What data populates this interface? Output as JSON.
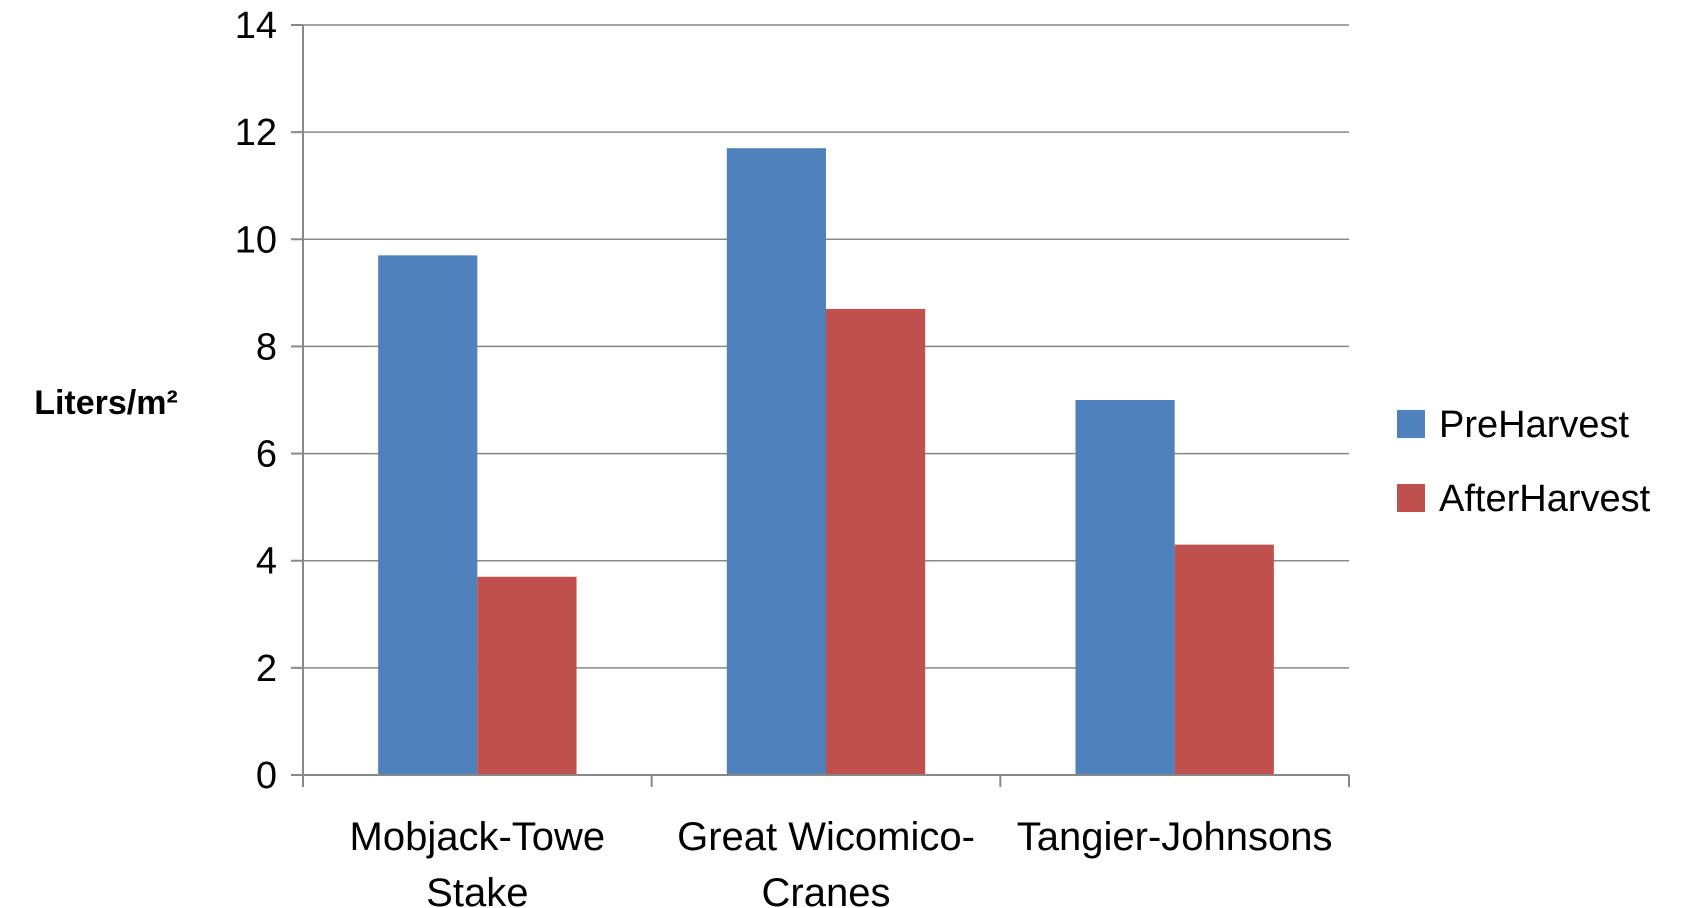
{
  "chart_data": {
    "type": "bar",
    "title": "",
    "xlabel": "",
    "ylabel": "Liters/m²",
    "categories": [
      [
        "Mobjack-Towe",
        "Stake"
      ],
      [
        "Great Wicomico-",
        "Cranes"
      ],
      [
        "Tangier-Johnsons"
      ]
    ],
    "series": [
      {
        "name": "PreHarvest",
        "color": "#4F81BD",
        "values": [
          9.7,
          11.7,
          7.0
        ]
      },
      {
        "name": "AfterHarvest",
        "color": "#C0504D",
        "values": [
          3.7,
          8.7,
          4.3
        ]
      }
    ],
    "ylim": [
      0,
      14
    ],
    "yticks": [
      0,
      2,
      4,
      6,
      8,
      10,
      12,
      14
    ],
    "grid": true,
    "legend_position": "right"
  }
}
